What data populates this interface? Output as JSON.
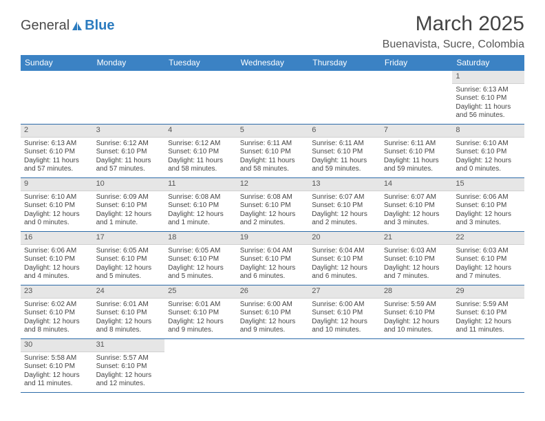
{
  "logo": {
    "text1": "General",
    "text2": "Blue"
  },
  "title": "March 2025",
  "location": "Buenavista, Sucre, Colombia",
  "headers": [
    "Sunday",
    "Monday",
    "Tuesday",
    "Wednesday",
    "Thursday",
    "Friday",
    "Saturday"
  ],
  "header_bg": "#3b82c4",
  "border_color": "#2b6aa8",
  "daynum_bg": "#e6e6e6",
  "weeks": [
    [
      null,
      null,
      null,
      null,
      null,
      null,
      {
        "n": "1",
        "sr": "Sunrise: 6:13 AM",
        "ss": "Sunset: 6:10 PM",
        "dl": "Daylight: 11 hours and 56 minutes."
      }
    ],
    [
      {
        "n": "2",
        "sr": "Sunrise: 6:13 AM",
        "ss": "Sunset: 6:10 PM",
        "dl": "Daylight: 11 hours and 57 minutes."
      },
      {
        "n": "3",
        "sr": "Sunrise: 6:12 AM",
        "ss": "Sunset: 6:10 PM",
        "dl": "Daylight: 11 hours and 57 minutes."
      },
      {
        "n": "4",
        "sr": "Sunrise: 6:12 AM",
        "ss": "Sunset: 6:10 PM",
        "dl": "Daylight: 11 hours and 58 minutes."
      },
      {
        "n": "5",
        "sr": "Sunrise: 6:11 AM",
        "ss": "Sunset: 6:10 PM",
        "dl": "Daylight: 11 hours and 58 minutes."
      },
      {
        "n": "6",
        "sr": "Sunrise: 6:11 AM",
        "ss": "Sunset: 6:10 PM",
        "dl": "Daylight: 11 hours and 59 minutes."
      },
      {
        "n": "7",
        "sr": "Sunrise: 6:11 AM",
        "ss": "Sunset: 6:10 PM",
        "dl": "Daylight: 11 hours and 59 minutes."
      },
      {
        "n": "8",
        "sr": "Sunrise: 6:10 AM",
        "ss": "Sunset: 6:10 PM",
        "dl": "Daylight: 12 hours and 0 minutes."
      }
    ],
    [
      {
        "n": "9",
        "sr": "Sunrise: 6:10 AM",
        "ss": "Sunset: 6:10 PM",
        "dl": "Daylight: 12 hours and 0 minutes."
      },
      {
        "n": "10",
        "sr": "Sunrise: 6:09 AM",
        "ss": "Sunset: 6:10 PM",
        "dl": "Daylight: 12 hours and 1 minute."
      },
      {
        "n": "11",
        "sr": "Sunrise: 6:08 AM",
        "ss": "Sunset: 6:10 PM",
        "dl": "Daylight: 12 hours and 1 minute."
      },
      {
        "n": "12",
        "sr": "Sunrise: 6:08 AM",
        "ss": "Sunset: 6:10 PM",
        "dl": "Daylight: 12 hours and 2 minutes."
      },
      {
        "n": "13",
        "sr": "Sunrise: 6:07 AM",
        "ss": "Sunset: 6:10 PM",
        "dl": "Daylight: 12 hours and 2 minutes."
      },
      {
        "n": "14",
        "sr": "Sunrise: 6:07 AM",
        "ss": "Sunset: 6:10 PM",
        "dl": "Daylight: 12 hours and 3 minutes."
      },
      {
        "n": "15",
        "sr": "Sunrise: 6:06 AM",
        "ss": "Sunset: 6:10 PM",
        "dl": "Daylight: 12 hours and 3 minutes."
      }
    ],
    [
      {
        "n": "16",
        "sr": "Sunrise: 6:06 AM",
        "ss": "Sunset: 6:10 PM",
        "dl": "Daylight: 12 hours and 4 minutes."
      },
      {
        "n": "17",
        "sr": "Sunrise: 6:05 AM",
        "ss": "Sunset: 6:10 PM",
        "dl": "Daylight: 12 hours and 5 minutes."
      },
      {
        "n": "18",
        "sr": "Sunrise: 6:05 AM",
        "ss": "Sunset: 6:10 PM",
        "dl": "Daylight: 12 hours and 5 minutes."
      },
      {
        "n": "19",
        "sr": "Sunrise: 6:04 AM",
        "ss": "Sunset: 6:10 PM",
        "dl": "Daylight: 12 hours and 6 minutes."
      },
      {
        "n": "20",
        "sr": "Sunrise: 6:04 AM",
        "ss": "Sunset: 6:10 PM",
        "dl": "Daylight: 12 hours and 6 minutes."
      },
      {
        "n": "21",
        "sr": "Sunrise: 6:03 AM",
        "ss": "Sunset: 6:10 PM",
        "dl": "Daylight: 12 hours and 7 minutes."
      },
      {
        "n": "22",
        "sr": "Sunrise: 6:03 AM",
        "ss": "Sunset: 6:10 PM",
        "dl": "Daylight: 12 hours and 7 minutes."
      }
    ],
    [
      {
        "n": "23",
        "sr": "Sunrise: 6:02 AM",
        "ss": "Sunset: 6:10 PM",
        "dl": "Daylight: 12 hours and 8 minutes."
      },
      {
        "n": "24",
        "sr": "Sunrise: 6:01 AM",
        "ss": "Sunset: 6:10 PM",
        "dl": "Daylight: 12 hours and 8 minutes."
      },
      {
        "n": "25",
        "sr": "Sunrise: 6:01 AM",
        "ss": "Sunset: 6:10 PM",
        "dl": "Daylight: 12 hours and 9 minutes."
      },
      {
        "n": "26",
        "sr": "Sunrise: 6:00 AM",
        "ss": "Sunset: 6:10 PM",
        "dl": "Daylight: 12 hours and 9 minutes."
      },
      {
        "n": "27",
        "sr": "Sunrise: 6:00 AM",
        "ss": "Sunset: 6:10 PM",
        "dl": "Daylight: 12 hours and 10 minutes."
      },
      {
        "n": "28",
        "sr": "Sunrise: 5:59 AM",
        "ss": "Sunset: 6:10 PM",
        "dl": "Daylight: 12 hours and 10 minutes."
      },
      {
        "n": "29",
        "sr": "Sunrise: 5:59 AM",
        "ss": "Sunset: 6:10 PM",
        "dl": "Daylight: 12 hours and 11 minutes."
      }
    ],
    [
      {
        "n": "30",
        "sr": "Sunrise: 5:58 AM",
        "ss": "Sunset: 6:10 PM",
        "dl": "Daylight: 12 hours and 11 minutes."
      },
      {
        "n": "31",
        "sr": "Sunrise: 5:57 AM",
        "ss": "Sunset: 6:10 PM",
        "dl": "Daylight: 12 hours and 12 minutes."
      },
      null,
      null,
      null,
      null,
      null
    ]
  ]
}
